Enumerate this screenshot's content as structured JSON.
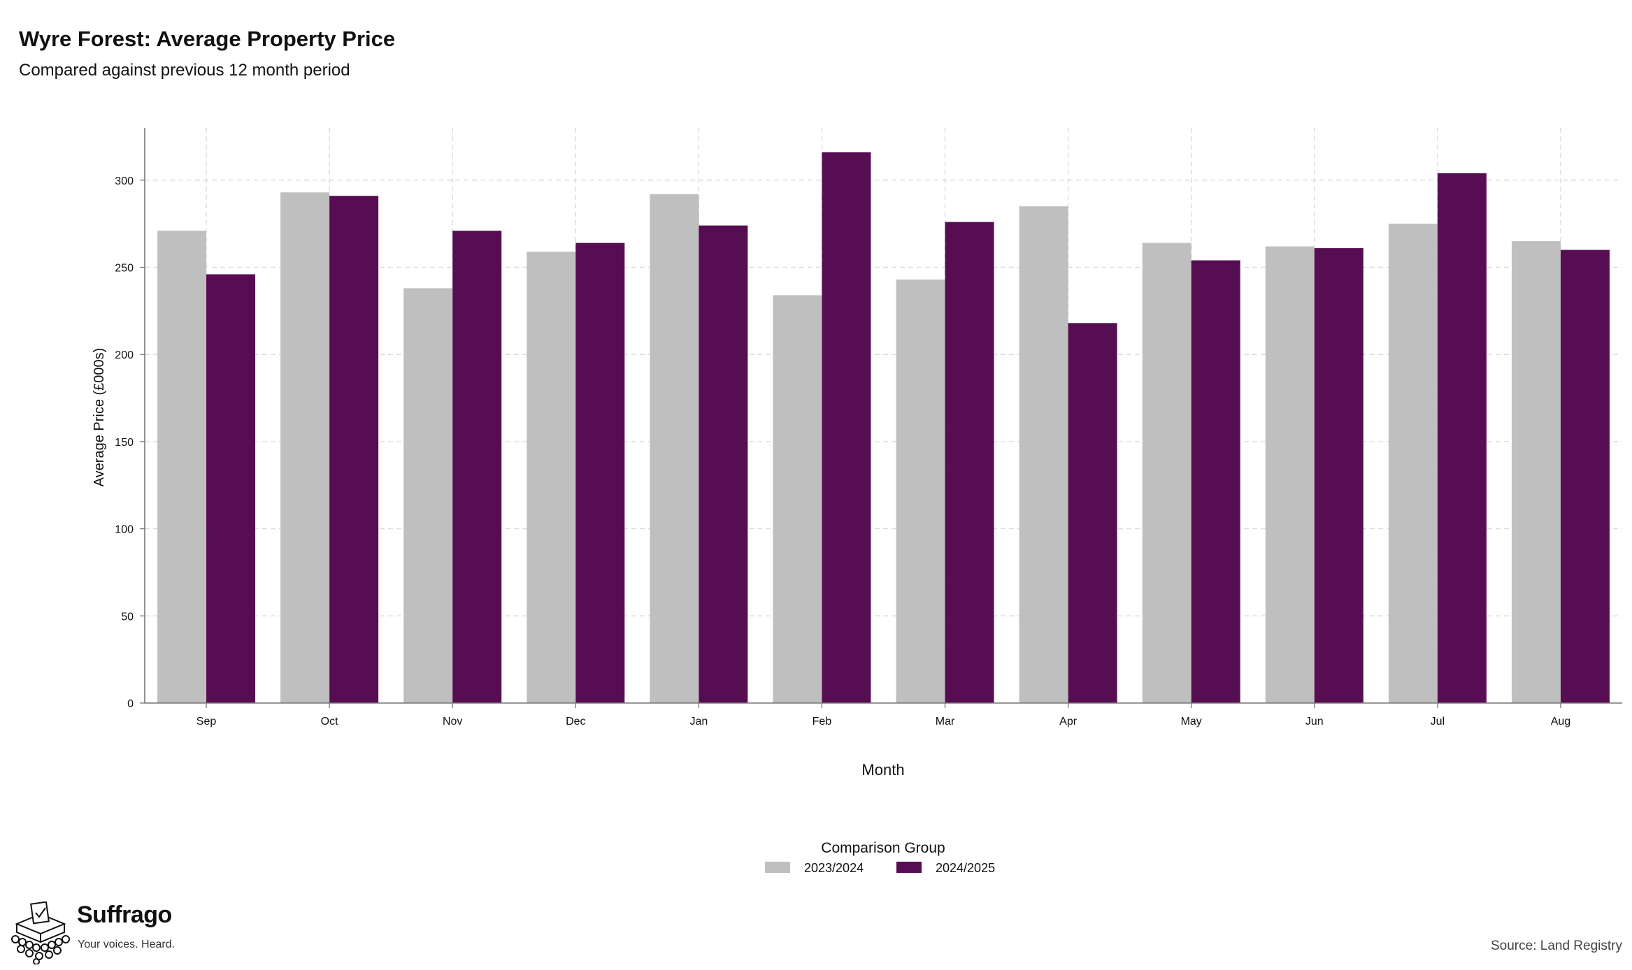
{
  "header": {
    "title": "Wyre Forest: Average Property Price",
    "subtitle": "Compared against previous 12 month period"
  },
  "chart_data": {
    "type": "bar",
    "title": "Wyre Forest: Average Property Price",
    "subtitle": "Compared against previous 12 month period",
    "xlabel": "Month",
    "ylabel": "Average Price (£000s)",
    "ylim": [
      0,
      330
    ],
    "yticks": [
      0,
      50,
      100,
      150,
      200,
      250,
      300
    ],
    "grid": true,
    "legend_title": "Comparison Group",
    "legend_position": "bottom",
    "categories": [
      "Sep",
      "Oct",
      "Nov",
      "Dec",
      "Jan",
      "Feb",
      "Mar",
      "Apr",
      "May",
      "Jun",
      "Jul",
      "Aug"
    ],
    "series": [
      {
        "name": "2023/2024",
        "color": "#bfbfbf",
        "values": [
          271,
          293,
          238,
          259,
          292,
          234,
          243,
          285,
          264,
          262,
          275,
          265
        ]
      },
      {
        "name": "2024/2025",
        "color": "#570d52",
        "values": [
          246,
          291,
          271,
          264,
          274,
          316,
          276,
          218,
          254,
          261,
          304,
          260
        ]
      }
    ]
  },
  "footer": {
    "brand_name": "Suffrago",
    "brand_tagline": "Your voices. Heard.",
    "source": "Source: Land Registry"
  },
  "logo_icon": "ballot-box-crowd-icon"
}
